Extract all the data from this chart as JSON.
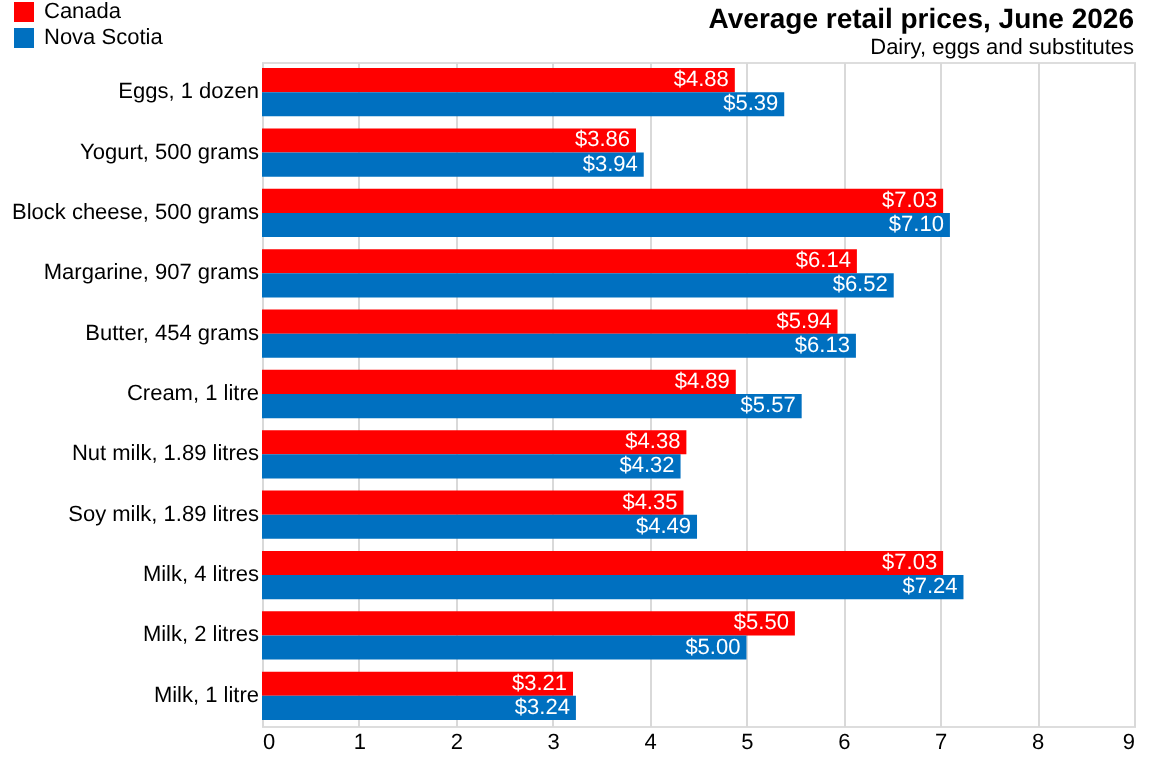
{
  "chart_data": {
    "type": "bar",
    "orientation": "horizontal",
    "title": "Average retail prices, June 2026",
    "subtitle": "Dairy, eggs and substitutes",
    "categories": [
      "Eggs, 1 dozen",
      "Yogurt, 500 grams",
      "Block cheese, 500 grams",
      "Margarine, 907 grams",
      "Butter, 454 grams",
      "Cream, 1 litre",
      "Nut milk, 1.89 litres",
      "Soy milk, 1.89 litres",
      "Milk, 4 litres",
      "Milk, 2 litres",
      "Milk, 1 litre"
    ],
    "series": [
      {
        "name": "Canada",
        "color": "#ff0000",
        "values": [
          4.88,
          3.86,
          7.03,
          6.14,
          5.94,
          4.89,
          4.38,
          4.35,
          7.03,
          5.5,
          3.21
        ],
        "value_labels": [
          "$4.88",
          "$3.86",
          "$7.03",
          "$6.14",
          "$5.94",
          "$4.89",
          "$4.38",
          "$4.35",
          "$7.03",
          "$5.50",
          "$3.21"
        ]
      },
      {
        "name": "Nova Scotia",
        "color": "#0070c0",
        "values": [
          5.39,
          3.94,
          7.1,
          6.52,
          6.13,
          5.57,
          4.32,
          4.49,
          7.24,
          5.0,
          3.24
        ],
        "value_labels": [
          "$5.39",
          "$3.94",
          "$7.10",
          "$6.52",
          "$6.13",
          "$5.57",
          "$4.32",
          "$4.49",
          "$7.24",
          "$5.00",
          "$3.24"
        ]
      }
    ],
    "xlim": [
      0,
      9
    ],
    "xticks": [
      0,
      1,
      2,
      3,
      4,
      5,
      6,
      7,
      8,
      9
    ],
    "grid": "x",
    "legend": "top left"
  }
}
